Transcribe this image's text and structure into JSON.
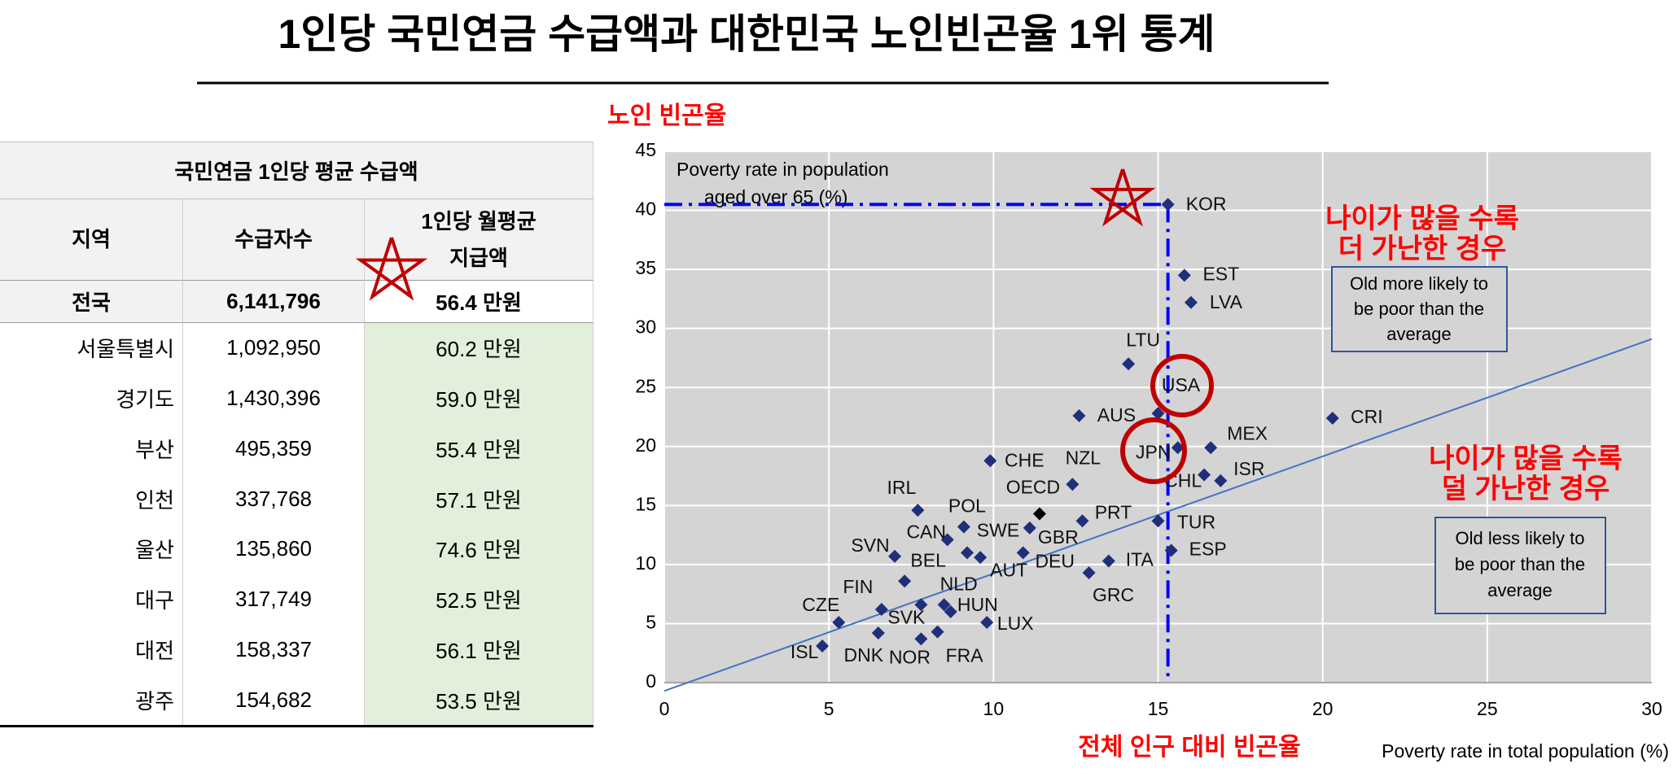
{
  "title": "1인당 국민연금 수급액과 대한민국 노인빈곤율 1위 통계",
  "table": {
    "title": "국민연금 1인당 평균 수급액",
    "columns": [
      "지역",
      "수급자수",
      [
        "1인당 월평균",
        "지급액"
      ]
    ],
    "total": [
      "전국",
      "6,141,796",
      "56.4 만원"
    ],
    "rows": [
      [
        "서울특별시",
        "1,092,950",
        "60.2 만원"
      ],
      [
        "경기도",
        "1,430,396",
        "59.0 만원"
      ],
      [
        "부산",
        "495,359",
        "55.4 만원"
      ],
      [
        "인천",
        "337,768",
        "57.1 만원"
      ],
      [
        "울산",
        "135,860",
        "74.6 만원"
      ],
      [
        "대구",
        "317,749",
        "52.5 만원"
      ],
      [
        "대전",
        "158,337",
        "56.1 만원"
      ],
      [
        "광주",
        "154,682",
        "53.5 만원"
      ]
    ]
  },
  "notes": {
    "y_note": "노인 빈곤율",
    "x_note": "전체 인구 대비 빈곤율",
    "upper": [
      "나이가 많을 수록",
      "더 가난한 경우"
    ],
    "upper_box": [
      "Old more likely to",
      "be poor than the",
      "average"
    ],
    "lower": [
      "나이가 많을 수록",
      "덜 가난한 경우"
    ],
    "lower_box": [
      "Old less likely to",
      "be poor than the",
      "average"
    ]
  },
  "chart_data": {
    "type": "scatter",
    "ylabel": [
      "Poverty rate in population",
      "aged over 65 (%)"
    ],
    "xlabel": "Poverty rate in total population (%)",
    "xlim": [
      0,
      30
    ],
    "ylim": [
      0,
      45
    ],
    "xticks": [
      0,
      5,
      10,
      15,
      20,
      25,
      30
    ],
    "yticks": [
      0,
      5,
      10,
      15,
      20,
      25,
      30,
      35,
      40,
      45
    ],
    "grid": true,
    "labels": [
      "KOR",
      "EST",
      "LVA",
      "LTU",
      "USA",
      "AUS",
      "MEX",
      "JPN",
      "CRI",
      "CHL",
      "ISR",
      "NZL",
      "PRT",
      "TUR",
      "ESP",
      "ITA",
      "GRC",
      "CZE",
      "ISL",
      "DNK",
      "FIN",
      "SVK",
      "NOR",
      "FRA",
      "NLD",
      "HUN",
      "LUX",
      "SVN",
      "BEL",
      "IRL",
      "CAN",
      "POL",
      "SWE",
      "AUT",
      "DEU",
      "GBR",
      "OECD",
      "CHE"
    ],
    "x": [
      15.3,
      15.8,
      16.0,
      14.1,
      15.0,
      12.6,
      16.6,
      15.6,
      20.3,
      16.4,
      16.9,
      12.4,
      12.7,
      15.0,
      15.4,
      13.5,
      12.9,
      5.3,
      4.8,
      6.5,
      6.6,
      7.8,
      7.8,
      8.3,
      8.5,
      8.7,
      9.8,
      7.0,
      7.3,
      7.7,
      8.6,
      9.1,
      9.2,
      9.6,
      10.9,
      11.1,
      11.4,
      9.9
    ],
    "y": [
      40.5,
      34.5,
      32.2,
      27.0,
      22.8,
      22.6,
      19.9,
      19.9,
      22.4,
      17.6,
      17.1,
      16.8,
      13.7,
      13.7,
      11.2,
      10.3,
      9.3,
      5.1,
      3.1,
      4.2,
      6.2,
      6.6,
      3.7,
      4.3,
      6.6,
      6.0,
      5.1,
      10.7,
      8.6,
      14.6,
      12.1,
      13.2,
      11.0,
      10.6,
      11.0,
      13.1,
      14.3,
      18.8
    ],
    "color": "#1f2f7a",
    "highlight_label": "OECD",
    "highlight_color": "#000000",
    "trend": {
      "x": [
        0,
        30
      ],
      "y": [
        -0.7,
        29.1
      ],
      "color": "#4472c4"
    },
    "reference_label": "KOR",
    "reference_color": "#0000ff"
  }
}
